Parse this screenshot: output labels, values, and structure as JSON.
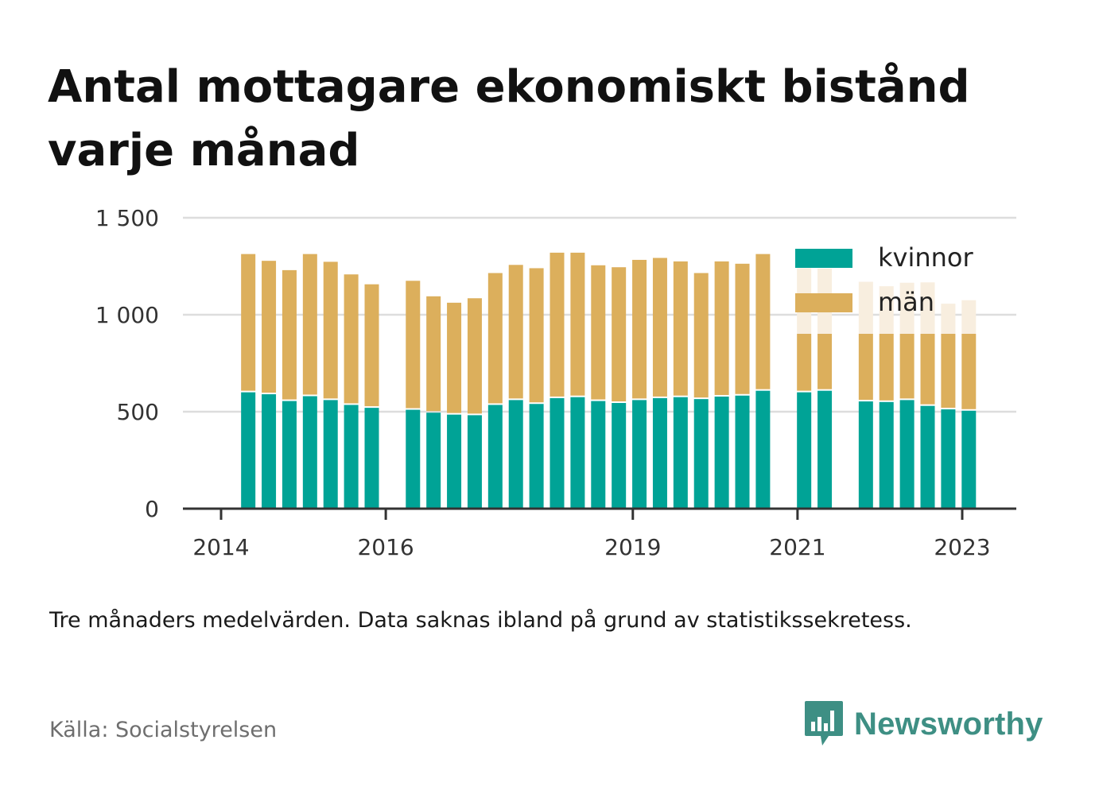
{
  "title": "Antal mottagare ekonomiskt bistånd varje månad",
  "note": "Tre månaders medelvärden. Data saknas ibland på grund av statistikssekretess.",
  "source": "Källa: Socialstyrelsen",
  "brand": "Newsworthy",
  "colors": {
    "kvinnor": "#00a396",
    "man": "#dcaf5c",
    "man_faded": "#f8eedf",
    "grid": "#dddddd",
    "axis": "#333333",
    "brand": "#3e8f84"
  },
  "chart_data": {
    "type": "bar",
    "stacked": true,
    "title": "Antal mottagare ekonomiskt bistånd varje månad",
    "xlabel": "",
    "ylabel": "",
    "ylim": [
      0,
      1500
    ],
    "yticks": [
      0,
      500,
      1000,
      1500
    ],
    "ytick_labels": [
      "0",
      "500",
      "1 000",
      "1 500"
    ],
    "xticks": [
      {
        "label": "2014",
        "x": 2014.0
      },
      {
        "label": "2016",
        "x": 2016.0
      },
      {
        "label": "2019",
        "x": 2019.0
      },
      {
        "label": "2021",
        "x": 2021.0
      },
      {
        "label": "2023",
        "x": 2023.0
      }
    ],
    "grid": true,
    "legend_position": "top-right",
    "series": [
      {
        "name": "kvinnor",
        "color": "#00a396",
        "x": [
          2014.33,
          2014.58,
          2014.83,
          2015.08,
          2015.33,
          2015.58,
          2015.83,
          2016.33,
          2016.58,
          2016.83,
          2017.08,
          2017.33,
          2017.58,
          2017.83,
          2018.08,
          2018.33,
          2018.58,
          2018.83,
          2019.08,
          2019.33,
          2019.58,
          2019.83,
          2020.08,
          2020.33,
          2020.58,
          2021.08,
          2021.33,
          2021.83,
          2022.08,
          2022.33,
          2022.58,
          2022.83,
          2023.08
        ],
        "values": [
          600,
          590,
          555,
          580,
          560,
          535,
          520,
          510,
          495,
          485,
          482,
          535,
          560,
          540,
          570,
          575,
          555,
          545,
          560,
          570,
          575,
          565,
          578,
          583,
          608,
          600,
          608,
          553,
          550,
          560,
          530,
          512,
          505
        ]
      },
      {
        "name": "män",
        "color": "#dcaf5c",
        "x": [
          2014.33,
          2014.58,
          2014.83,
          2015.08,
          2015.33,
          2015.58,
          2015.83,
          2016.33,
          2016.58,
          2016.83,
          2017.08,
          2017.33,
          2017.58,
          2017.83,
          2018.08,
          2018.33,
          2018.58,
          2018.83,
          2019.08,
          2019.33,
          2019.58,
          2019.83,
          2020.08,
          2020.33,
          2020.58,
          2021.08,
          2021.33,
          2021.83,
          2022.08,
          2022.33,
          2022.58,
          2022.83,
          2023.08
        ],
        "values": [
          713,
          688,
          675,
          733,
          713,
          673,
          637,
          665,
          600,
          577,
          603,
          680,
          697,
          700,
          750,
          745,
          700,
          700,
          723,
          723,
          700,
          650,
          697,
          680,
          705,
          640,
          630,
          617,
          597,
          605,
          637,
          545,
          570
        ]
      }
    ]
  }
}
